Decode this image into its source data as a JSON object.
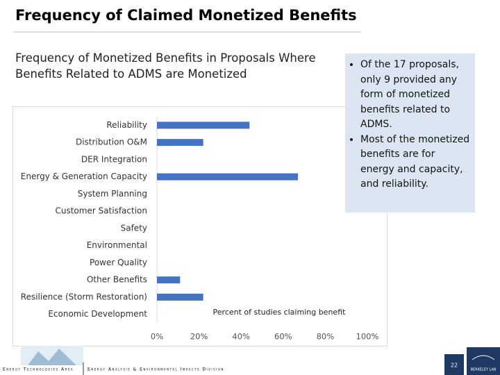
{
  "header": {
    "title": "Frequency of Claimed Monetized Benefits"
  },
  "chart_data": {
    "type": "bar",
    "orientation": "horizontal",
    "title": "Frequency of Monetized Benefits in Proposals Where Benefits Related to ADMS are Monetized",
    "x_label": "Percent of studies claiming benefit",
    "categories": [
      "Reliability",
      "Distribution O&M",
      "DER Integration",
      "Energy & Generation Capacity",
      "System Planning",
      "Customer Satisfaction",
      "Safety",
      "Environmental",
      "Power Quality",
      "Other Benefits",
      "Resilience (Storm Restoration)",
      "Economic Development"
    ],
    "values": [
      44,
      22,
      0,
      67,
      0,
      0,
      0,
      0,
      0,
      11,
      22,
      0
    ],
    "color": "#4472c4",
    "xlim": [
      0,
      100
    ],
    "xticks": [
      {
        "value": 0,
        "label": "0%"
      },
      {
        "value": 20,
        "label": "20%"
      },
      {
        "value": 40,
        "label": "40%"
      },
      {
        "value": 60,
        "label": "60%"
      },
      {
        "value": 80,
        "label": "80%"
      },
      {
        "value": 100,
        "label": "100%"
      }
    ]
  },
  "bullets": [
    "Of the 17 proposals, only 9 provided any form of monetized benefits related to ADMS.",
    "Most of the monetized benefits are for energy and capacity, and reliability."
  ],
  "footer": {
    "left": "Energy Technologies Area",
    "right": "Energy Analysis & Environmental Impacts Division",
    "page": "22",
    "lab": "BERKELEY LAB"
  }
}
